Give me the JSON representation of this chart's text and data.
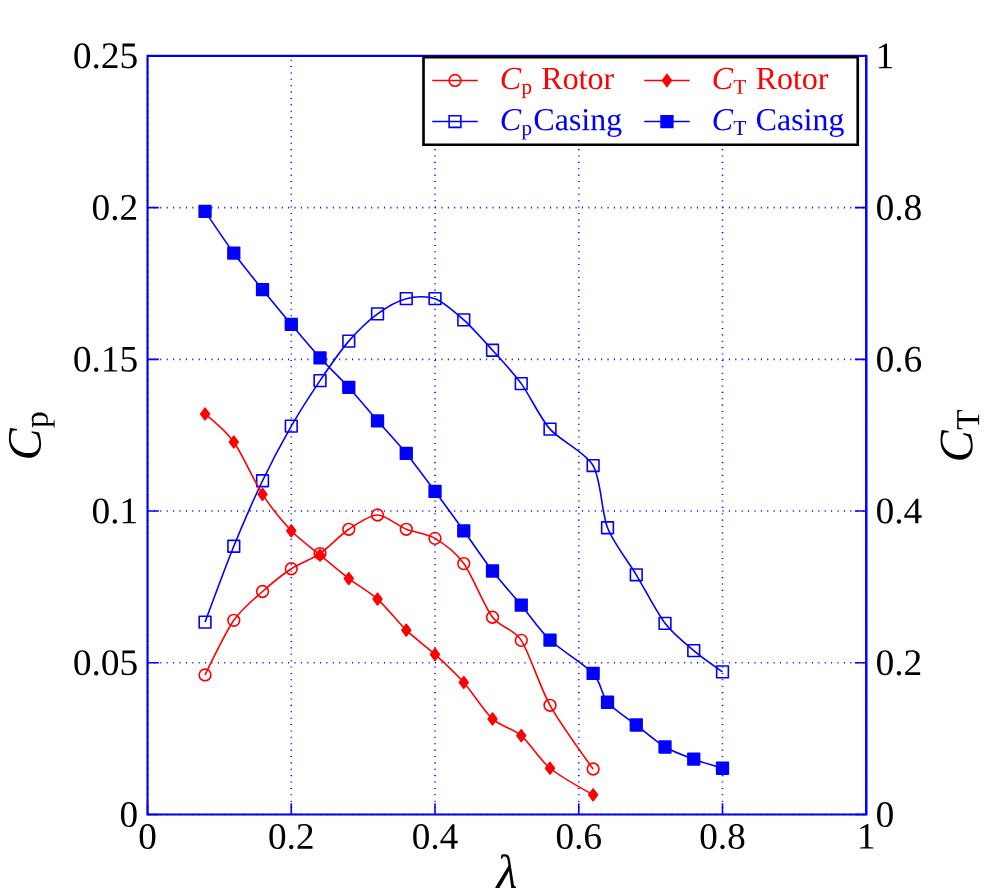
{
  "chart_data": {
    "type": "line",
    "xlabel": "λ",
    "ylabel": "*C*$_{p}$",
    "y2label": "*C*$_{T}$",
    "xlim": [
      0,
      1
    ],
    "xticks": [
      0,
      0.2,
      0.4,
      0.6,
      0.8,
      1
    ],
    "ylim": [
      0,
      0.25
    ],
    "yticks": [
      0,
      0.05,
      0.1,
      0.15,
      0.2,
      0.25
    ],
    "y2lim": [
      0,
      1
    ],
    "y2ticks": [
      0,
      0.2,
      0.4,
      0.6,
      0.8,
      1
    ],
    "grid": true,
    "legend": "top right",
    "line_style": "solid",
    "series": [
      {
        "name": "*C*$_{p}$ Rotor",
        "color": "#ff0000",
        "marker": "circle",
        "x": [
          0.08,
          0.12,
          0.16,
          0.2,
          0.24,
          0.28,
          0.32,
          0.36,
          0.4,
          0.44,
          0.48,
          0.52,
          0.56,
          0.62
        ],
        "values": [
          0.046,
          0.064,
          0.0735,
          0.081,
          0.086,
          0.094,
          0.0987,
          0.094,
          0.091,
          0.0827,
          0.065,
          0.0574,
          0.036,
          0.015
        ]
      },
      {
        "name": "*C*$_{p}$Casing",
        "color": "#0000ff",
        "marker": "square",
        "x": [
          0.08,
          0.12,
          0.16,
          0.2,
          0.24,
          0.28,
          0.32,
          0.36,
          0.4,
          0.44,
          0.48,
          0.52,
          0.56,
          0.62,
          0.64,
          0.68,
          0.72,
          0.76,
          0.8
        ],
        "values": [
          0.0634,
          0.0884,
          0.11,
          0.128,
          0.143,
          0.156,
          0.165,
          0.17,
          0.17,
          0.163,
          0.153,
          0.142,
          0.127,
          0.115,
          0.0945,
          0.079,
          0.063,
          0.054,
          0.047
        ]
      },
      {
        "name": "*C*$_{T}$ Rotor",
        "color": "#ff0000",
        "marker": "diamond",
        "axis": "y2",
        "x": [
          0.08,
          0.12,
          0.16,
          0.2,
          0.24,
          0.28,
          0.32,
          0.36,
          0.4,
          0.44,
          0.48,
          0.52,
          0.56,
          0.62
        ],
        "values": [
          0.528,
          0.491,
          0.422,
          0.374,
          0.342,
          0.311,
          0.284,
          0.243,
          0.211,
          0.174,
          0.126,
          0.104,
          0.061,
          0.026
        ]
      },
      {
        "name": "*C*$_{T}$ Casing",
        "color": "#0000ff",
        "marker": "square",
        "axis": "y2",
        "x": [
          0.08,
          0.12,
          0.16,
          0.2,
          0.24,
          0.28,
          0.32,
          0.36,
          0.4,
          0.44,
          0.48,
          0.52,
          0.56,
          0.62,
          0.64,
          0.68,
          0.72,
          0.76,
          0.8
        ],
        "values": [
          0.795,
          0.74,
          0.692,
          0.646,
          0.602,
          0.563,
          0.519,
          0.476,
          0.426,
          0.374,
          0.321,
          0.276,
          0.23,
          0.186,
          0.148,
          0.118,
          0.089,
          0.073,
          0.061
        ]
      }
    ]
  }
}
